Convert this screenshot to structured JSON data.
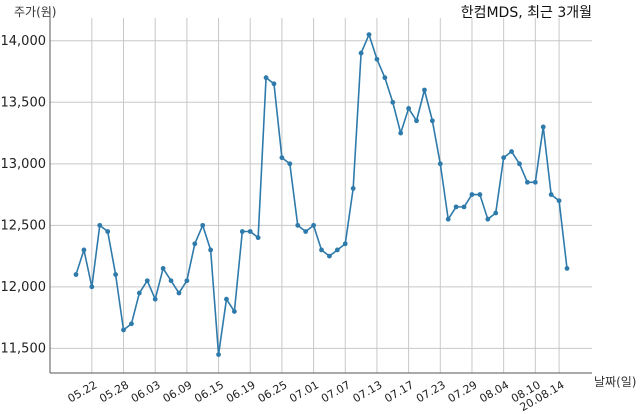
{
  "chart_data": {
    "type": "line",
    "title": "한컴MDS, 최근 3개월",
    "ylabel": "주가(원)",
    "xlabel": "날짜(일)",
    "ylim": [
      11300,
      14120
    ],
    "yticks": [
      11500,
      12000,
      12500,
      13000,
      13500,
      14000
    ],
    "ytick_labels": [
      "11,500",
      "12,000",
      "12,500",
      "13,000",
      "13,500",
      "14,000"
    ],
    "xtick_labels": [
      "05.22",
      "05.28",
      "06.03",
      "06.09",
      "06.15",
      "06.19",
      "06.25",
      "07.01",
      "07.07",
      "07.13",
      "07.17",
      "07.23",
      "07.29",
      "08.04",
      "08.10",
      "20.08.14"
    ],
    "xtick_indices": [
      2,
      6,
      10,
      14,
      18,
      22,
      26,
      30,
      34,
      38,
      42,
      46,
      50,
      54,
      58,
      61
    ],
    "grid": true,
    "line_color": "#2e7aab",
    "series": [
      {
        "name": "",
        "values": [
          12100,
          12300,
          12000,
          12500,
          12450,
          12100,
          11650,
          11700,
          11950,
          12050,
          11900,
          12150,
          12050,
          11950,
          12050,
          12350,
          12500,
          12300,
          11450,
          11900,
          11800,
          12450,
          12450,
          12400,
          13700,
          13650,
          13050,
          13000,
          12500,
          12450,
          12500,
          12300,
          12250,
          12300,
          12350,
          12800,
          13900,
          14050,
          13850,
          13700,
          13500,
          13250,
          13450,
          13350,
          13600,
          13350,
          13000,
          12550,
          12650,
          12650,
          12750,
          12750,
          12550,
          12600,
          13050,
          13100,
          13000,
          12850,
          12850,
          13300,
          12750,
          12700,
          12150
        ]
      }
    ]
  }
}
